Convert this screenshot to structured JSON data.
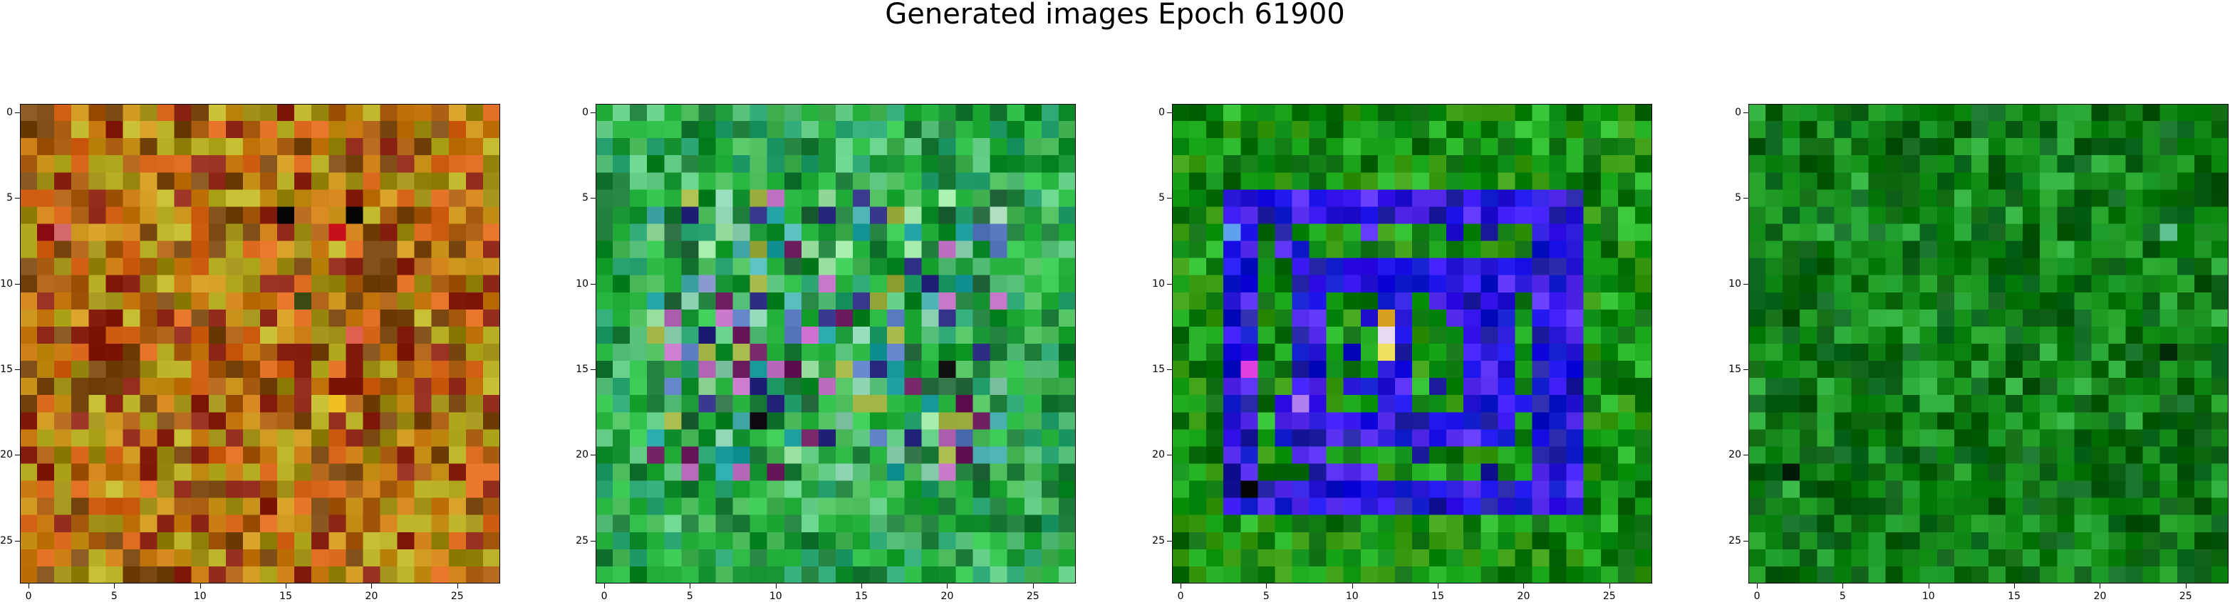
{
  "title": "Generated images Epoch 61900",
  "chart_data": [
    {
      "type": "heatmap",
      "title": "",
      "grid": false,
      "xlim": [
        0,
        27
      ],
      "ylim": [
        27,
        0
      ],
      "x_ticks": [
        "0",
        "5",
        "10",
        "15",
        "20",
        "25"
      ],
      "y_ticks": [
        "0",
        "5",
        "10",
        "15",
        "20",
        "25"
      ],
      "size": 28,
      "palette": [
        "#c87a10",
        "#a85c10",
        "#9a8a12",
        "#c9921a",
        "#7a4a12",
        "#b9b025",
        "#d8661a",
        "#8c2416"
      ],
      "accents": [
        {
          "row": 6,
          "col": 15,
          "color": "#050505"
        },
        {
          "row": 6,
          "col": 19,
          "color": "#050505"
        },
        {
          "row": 7,
          "col": 1,
          "color": "#8a0a14"
        },
        {
          "row": 7,
          "col": 18,
          "color": "#c8101a"
        },
        {
          "row": 7,
          "col": 2,
          "color": "#d46a6a"
        },
        {
          "row": 11,
          "col": 16,
          "color": "#3a4a10"
        },
        {
          "row": 13,
          "col": 19,
          "color": "#e06050"
        },
        {
          "row": 17,
          "col": 18,
          "color": "#f0c020"
        }
      ]
    },
    {
      "type": "heatmap",
      "title": "",
      "grid": false,
      "xlim": [
        0,
        27
      ],
      "ylim": [
        27,
        0
      ],
      "x_ticks": [
        "0",
        "5",
        "10",
        "15",
        "20",
        "25"
      ],
      "y_ticks": [
        "0",
        "5",
        "10",
        "15",
        "20",
        "25"
      ],
      "size": 28,
      "palette": [
        "#1ea835",
        "#2fbf4a",
        "#0f8a2a",
        "#5fc880",
        "#27a070",
        "#48b858",
        "#1c7a38"
      ],
      "inner_palette": [
        "#5a7ac0",
        "#4ab0b0",
        "#8ad0b0",
        "#a0b040",
        "#6a1a5a",
        "#2a2a80",
        "#c070c0",
        "#20a0a0",
        "#2a6a40",
        "#9ae0a0"
      ],
      "accents": [
        {
          "row": 10,
          "col": 6,
          "color": "#8a9ad0"
        },
        {
          "row": 13,
          "col": 12,
          "color": "#d070d0"
        },
        {
          "row": 15,
          "col": 20,
          "color": "#101010"
        },
        {
          "row": 18,
          "col": 9,
          "color": "#100810"
        },
        {
          "row": 6,
          "col": 23,
          "color": "#b0e0c0"
        }
      ]
    },
    {
      "type": "heatmap",
      "title": "",
      "grid": false,
      "xlim": [
        0,
        27
      ],
      "ylim": [
        27,
        0
      ],
      "x_ticks": [
        "0",
        "5",
        "10",
        "15",
        "20",
        "25"
      ],
      "y_ticks": [
        "0",
        "5",
        "10",
        "15",
        "20",
        "25"
      ],
      "size": 28,
      "palette": [
        "#0a8a12",
        "#18a018",
        "#067008",
        "#2ab82a",
        "#0b6a10",
        "#3a9a10"
      ],
      "inner_palette": [
        "#1a10e8",
        "#3a18f0",
        "#2a1ad8",
        "#5a30f0",
        "#0c18c8",
        "#2020a0"
      ],
      "accents": [
        {
          "row": 13,
          "col": 12,
          "color": "#e8d8f0"
        },
        {
          "row": 14,
          "col": 12,
          "color": "#f0e060"
        },
        {
          "row": 12,
          "col": 12,
          "color": "#d8a020"
        },
        {
          "row": 15,
          "col": 4,
          "color": "#e040e0"
        },
        {
          "row": 22,
          "col": 4,
          "color": "#050505"
        },
        {
          "row": 7,
          "col": 3,
          "color": "#60a0f0"
        },
        {
          "row": 17,
          "col": 7,
          "color": "#b080f0"
        }
      ]
    },
    {
      "type": "heatmap",
      "title": "",
      "grid": false,
      "xlim": [
        0,
        27
      ],
      "ylim": [
        27,
        0
      ],
      "x_ticks": [
        "0",
        "5",
        "10",
        "15",
        "20",
        "25"
      ],
      "y_ticks": [
        "0",
        "5",
        "10",
        "15",
        "20",
        "25"
      ],
      "size": 28,
      "palette": [
        "#0a7a10",
        "#128a18",
        "#066008",
        "#1c9a22",
        "#0a5a14",
        "#2aa838",
        "#0e6a20"
      ],
      "accents": [
        {
          "row": 14,
          "col": 24,
          "color": "#022a0a"
        },
        {
          "row": 7,
          "col": 24,
          "color": "#60c090"
        },
        {
          "row": 21,
          "col": 2,
          "color": "#021a08"
        },
        {
          "row": 18,
          "col": 18,
          "color": "#3ab84a"
        }
      ]
    }
  ]
}
